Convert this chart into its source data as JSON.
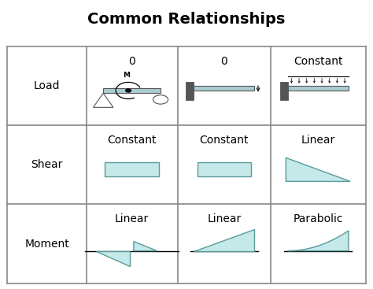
{
  "title": "Common Relationships",
  "title_fontsize": 14,
  "title_fontweight": "bold",
  "background_color": "#ffffff",
  "grid_color": "#888888",
  "fill_color": "#c5e8e8",
  "fill_edge_color": "#5a9a9a",
  "row_labels": [
    "Load",
    "Shear",
    "Moment"
  ],
  "col_labels": [
    "0",
    "0",
    "Constant"
  ],
  "shear_labels": [
    "Constant",
    "Constant",
    "Linear"
  ],
  "moment_labels": [
    "Linear",
    "Linear",
    "Parabolic"
  ],
  "label_fontsize": 10
}
